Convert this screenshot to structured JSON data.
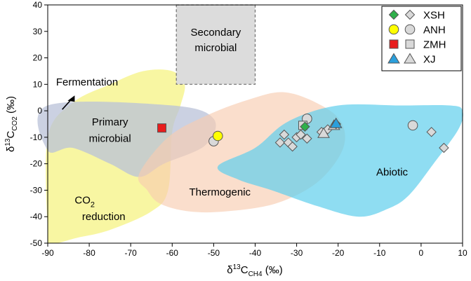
{
  "chart_data": {
    "type": "scatter",
    "xlabel_parts": {
      "base": "δ",
      "sup": "13",
      "mid": "C",
      "sub": "CH4",
      "unit": " (‰)"
    },
    "ylabel_parts": {
      "base": "δ",
      "sup": "13",
      "mid": "C",
      "sub": "CO2",
      "unit": " (‰)"
    },
    "xlim": [
      -90,
      10
    ],
    "ylim": [
      -50,
      40
    ],
    "x_ticks": [
      -90,
      -80,
      -70,
      -60,
      -50,
      -40,
      -30,
      -20,
      -10,
      0,
      10
    ],
    "y_ticks": [
      -50,
      -40,
      -30,
      -20,
      -10,
      0,
      10,
      20,
      30,
      40
    ],
    "regions": [
      {
        "name": "Primary microbial",
        "color": "#b9c2d8",
        "polygon": [
          [
            -90,
            2
          ],
          [
            -60,
            2
          ],
          [
            -50,
            -3
          ],
          [
            -52,
            -13
          ],
          [
            -62,
            -20
          ],
          [
            -68,
            -25
          ],
          [
            -75,
            -20
          ],
          [
            -84,
            -14
          ],
          [
            -90,
            -15
          ]
        ]
      },
      {
        "name": "CO2 reduction",
        "color": "#f5f27a",
        "polygon": [
          [
            -90,
            -10
          ],
          [
            -84,
            3
          ],
          [
            -75,
            10
          ],
          [
            -67,
            15
          ],
          [
            -60,
            15
          ],
          [
            -57,
            10
          ],
          [
            -58,
            2
          ],
          [
            -60,
            -8
          ],
          [
            -61,
            -30
          ],
          [
            -65,
            -38
          ],
          [
            -75,
            -45
          ],
          [
            -83,
            -48
          ],
          [
            -89,
            -50
          ],
          [
            -90,
            -45
          ]
        ]
      },
      {
        "name": "Thermogenic",
        "color": "#f8cdb0",
        "polygon": [
          [
            -68,
            -24
          ],
          [
            -61,
            -10
          ],
          [
            -52,
            -2
          ],
          [
            -42,
            4
          ],
          [
            -33,
            7
          ],
          [
            -24,
            2
          ],
          [
            -19,
            -5
          ],
          [
            -19,
            -15
          ],
          [
            -25,
            -27
          ],
          [
            -35,
            -35
          ],
          [
            -47,
            -38
          ],
          [
            -56,
            -38
          ],
          [
            -63,
            -35
          ],
          [
            -66,
            -30
          ]
        ]
      },
      {
        "name": "Abiotic",
        "color": "#5fcfec",
        "polygon": [
          [
            -49,
            -21
          ],
          [
            -40,
            -14
          ],
          [
            -32,
            -4
          ],
          [
            -20,
            2
          ],
          [
            -5,
            2
          ],
          [
            7,
            2
          ],
          [
            10,
            0
          ],
          [
            9,
            -7
          ],
          [
            3,
            -20
          ],
          [
            -3,
            -32
          ],
          [
            -8,
            -37
          ],
          [
            -15,
            -40
          ],
          [
            -25,
            -36
          ],
          [
            -36,
            -30
          ],
          [
            -44,
            -26
          ]
        ]
      }
    ],
    "secondary_microbial_box": {
      "x": [
        -59,
        -40
      ],
      "y": [
        10,
        40
      ]
    },
    "region_labels": [
      {
        "lines": [
          "Secondary",
          "microbial"
        ]
      },
      {
        "lines": [
          "Primary",
          "microbial"
        ]
      },
      {
        "lines": [
          "Thermogenic"
        ]
      },
      {
        "lines": [
          "Abiotic"
        ]
      },
      {
        "lines": [
          "CO",
          "reduction"
        ],
        "sub": "2"
      },
      {
        "lines": [
          "Fermentation"
        ]
      }
    ],
    "series": [
      {
        "name": "XSH",
        "filled_color": "#2fb04a",
        "marker": "diamond",
        "filled": [
          [
            -28,
            -6
          ],
          [
            -20.5,
            -5
          ]
        ],
        "grey": [
          [
            -34,
            -12
          ],
          [
            -33,
            -9
          ],
          [
            -32,
            -12
          ],
          [
            -31,
            -13.5
          ],
          [
            -30,
            -10
          ],
          [
            -29,
            -9
          ],
          [
            -27.5,
            -10.5
          ],
          [
            -24,
            -8
          ],
          [
            -22.5,
            -7
          ],
          [
            2.5,
            -8
          ],
          [
            5.5,
            -14
          ]
        ]
      },
      {
        "name": "ANH",
        "filled_color": "#ffff00",
        "marker": "circle",
        "filled": [
          [
            -49,
            -9.5
          ]
        ],
        "grey": [
          [
            -50,
            -11.5
          ],
          [
            -27.5,
            -3
          ],
          [
            -2,
            -5.5
          ]
        ]
      },
      {
        "name": "ZMH",
        "filled_color": "#e81d1d",
        "marker": "square",
        "filled": [
          [
            -62.5,
            -6.5
          ]
        ],
        "grey": [
          [
            -28.5,
            -5.5
          ]
        ]
      },
      {
        "name": "XJ",
        "filled_color": "#2b9fdc",
        "marker": "triangle",
        "filled": [
          [
            -20.5,
            -4.8
          ]
        ],
        "grey": [
          [
            -23.5,
            -8.5
          ],
          [
            -21,
            -5.5
          ]
        ]
      }
    ],
    "legend": {
      "position": "top-right",
      "entries": [
        "XSH",
        "ANH",
        "ZMH",
        "XJ"
      ]
    }
  }
}
